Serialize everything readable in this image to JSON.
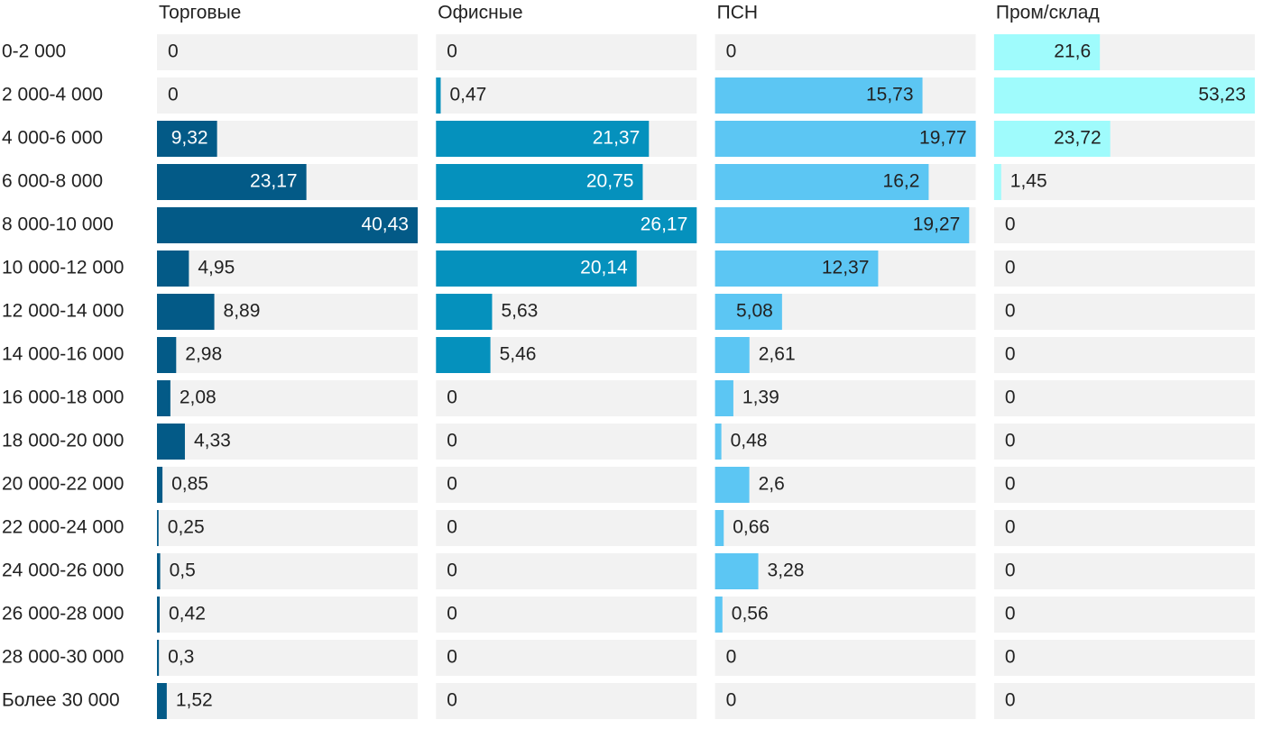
{
  "chart_data": {
    "type": "bar",
    "categories": [
      "0-2 000",
      "2 000-4 000",
      "4 000-6 000",
      "6 000-8 000",
      "8 000-10 000",
      "10 000-12 000",
      "12 000-14 000",
      "14 000-16 000",
      "16 000-18 000",
      "18 000-20 000",
      "20 000-22 000",
      "22 000-24 000",
      "24 000-26 000",
      "26 000-28 000",
      "28 000-30 000",
      "Более 30 000"
    ],
    "series": [
      {
        "name": "Торговые",
        "color": "#035a87",
        "values": [
          0,
          0,
          9.32,
          23.17,
          40.43,
          4.95,
          8.89,
          2.98,
          2.08,
          4.33,
          0.85,
          0.25,
          0.5,
          0.42,
          0.3,
          1.52
        ],
        "value_labels": [
          "0",
          "0",
          "9,32",
          "23,17",
          "40,43",
          "4,95",
          "8,89",
          "2,98",
          "2,08",
          "4,33",
          "0,85",
          "0,25",
          "0,5",
          "0,42",
          "0,3",
          "1,52"
        ]
      },
      {
        "name": "Офисные",
        "color": "#0591bd",
        "values": [
          0,
          0.47,
          21.37,
          20.75,
          26.17,
          20.14,
          5.63,
          5.46,
          0,
          0,
          0,
          0,
          0,
          0,
          0,
          0
        ],
        "value_labels": [
          "0",
          "0,47",
          "21,37",
          "20,75",
          "26,17",
          "20,14",
          "5,63",
          "5,46",
          "0",
          "0",
          "0",
          "0",
          "0",
          "0",
          "0",
          "0"
        ]
      },
      {
        "name": "ПСН",
        "color": "#5cc6f3",
        "values": [
          0,
          15.73,
          19.77,
          16.2,
          19.27,
          12.37,
          5.08,
          2.61,
          1.39,
          0.48,
          2.6,
          0.66,
          3.28,
          0.56,
          0,
          0
        ],
        "value_labels": [
          "0",
          "15,73",
          "19,77",
          "16,2",
          "19,27",
          "12,37",
          "5,08",
          "2,61",
          "1,39",
          "0,48",
          "2,6",
          "0,66",
          "3,28",
          "0,56",
          "0",
          "0"
        ]
      },
      {
        "name": "Пром/склад",
        "color": "#9ffbfc",
        "values": [
          21.6,
          53.23,
          23.72,
          1.45,
          0,
          0,
          0,
          0,
          0,
          0,
          0,
          0,
          0,
          0,
          0,
          0
        ],
        "value_labels": [
          "21,6",
          "53,23",
          "23,72",
          "1,45",
          "0",
          "0",
          "0",
          "0",
          "0",
          "0",
          "0",
          "0",
          "0",
          "0",
          "0",
          "0"
        ]
      }
    ]
  }
}
